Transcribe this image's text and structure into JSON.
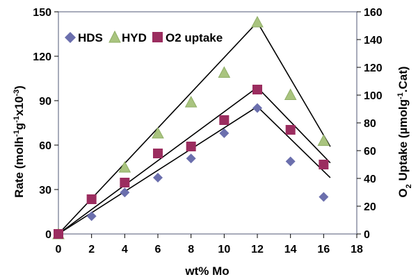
{
  "chart_data": {
    "type": "scatter",
    "xlabel": "wt%  Mo",
    "ylabel_left": "Rate (molh-1g-1x10-3)",
    "ylabel_right": "O2 Uptake (µmolg-1.Cat)",
    "xlim": [
      0,
      18
    ],
    "x_ticks": [
      0,
      2,
      4,
      6,
      8,
      10,
      12,
      14,
      16,
      18
    ],
    "ylim_left": [
      0,
      150
    ],
    "y_ticks_left": [
      0,
      30,
      60,
      90,
      120,
      150
    ],
    "ylim_right": [
      0,
      160
    ],
    "y_ticks_right": [
      0,
      20,
      40,
      60,
      80,
      100,
      120,
      140,
      160
    ],
    "grid": false,
    "legend_position": "top-left",
    "series": [
      {
        "name": "HDS",
        "marker": "diamond",
        "color": "#6b6fad",
        "axis": "left",
        "x": [
          0,
          2,
          4,
          6,
          8,
          10,
          12,
          14,
          16
        ],
        "y": [
          0,
          12,
          28,
          38,
          51,
          68,
          85,
          49,
          25
        ]
      },
      {
        "name": "HYD",
        "marker": "triangle",
        "color": "#a9c47f",
        "axis": "left",
        "x": [
          0,
          4,
          6,
          8,
          10,
          12,
          14,
          16
        ],
        "y": [
          0,
          45,
          68,
          89,
          109,
          143,
          94,
          63
        ]
      },
      {
        "name": "O2 uptake",
        "marker": "square",
        "color": "#9b2d5f",
        "axis": "right",
        "x": [
          0,
          2,
          4,
          6,
          8,
          10,
          12,
          14,
          16
        ],
        "y": [
          0,
          25,
          37,
          58,
          63,
          82,
          104,
          75,
          50
        ]
      }
    ],
    "trend_lines": [
      {
        "x": [
          0,
          12,
          16.4
        ],
        "y": [
          0,
          143,
          59
        ],
        "axis": "left"
      },
      {
        "x": [
          0,
          12,
          16.4
        ],
        "y": [
          0,
          99,
          48
        ],
        "axis": "left"
      },
      {
        "x": [
          0,
          12,
          16.4
        ],
        "y": [
          0,
          86,
          38
        ],
        "axis": "left"
      }
    ]
  }
}
